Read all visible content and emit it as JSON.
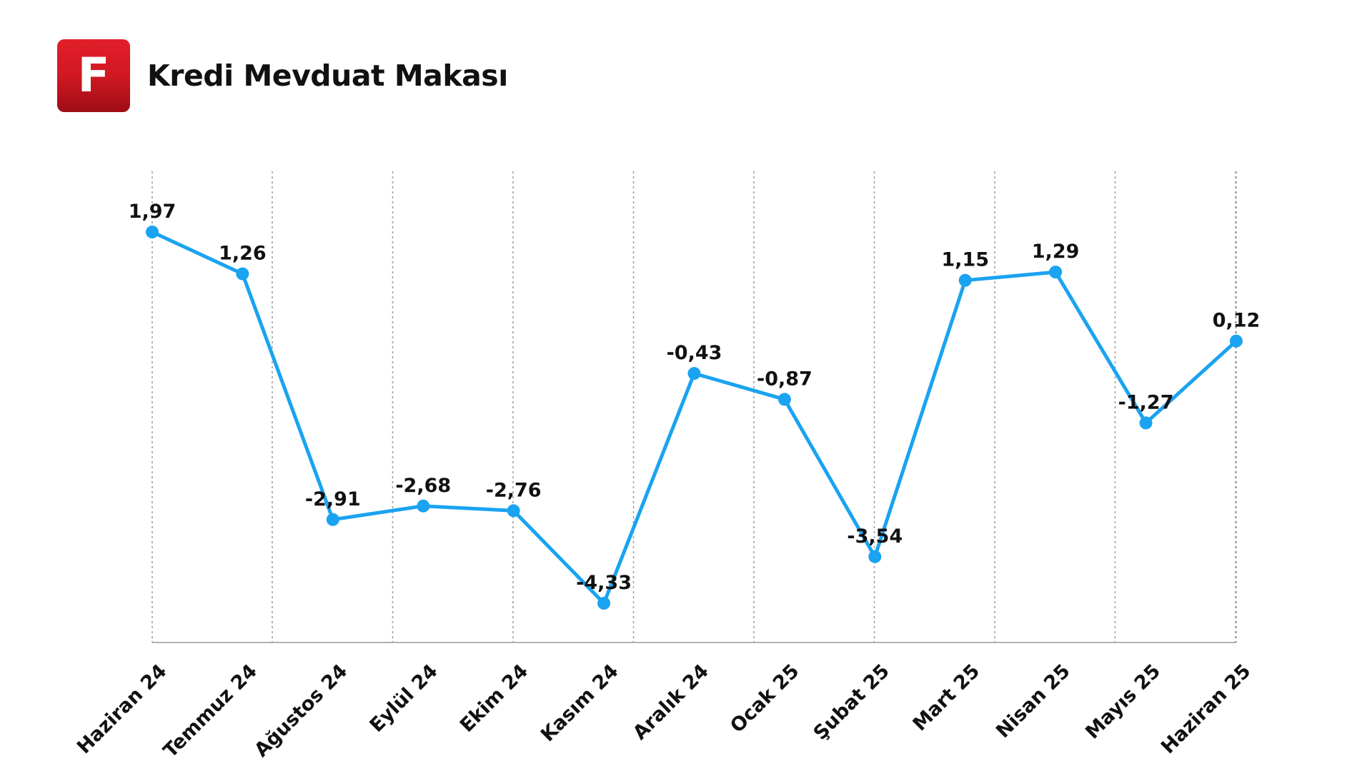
{
  "header": {
    "logo_letter": "F",
    "title": "Kredi Mevduat Makası"
  },
  "chart_data": {
    "type": "line",
    "title": "Kredi Mevduat Makası",
    "xlabel": "",
    "ylabel": "",
    "categories": [
      "Haziran 24",
      "Temmuz 24",
      "Ağustos 24",
      "Eylül 24",
      "Ekim 24",
      "Kasım 24",
      "Aralık 24",
      "Ocak 25",
      "Şubat 25",
      "Mart 25",
      "Nisan 25",
      "Mayıs 25",
      "Haziran 25"
    ],
    "series": [
      {
        "values": [
          1.97,
          1.26,
          -2.91,
          -2.68,
          -2.76,
          -4.33,
          -0.43,
          -0.87,
          -3.54,
          1.15,
          1.29,
          -1.27,
          0.12
        ],
        "labels": [
          "1,97",
          "1,26",
          "-2,91",
          "-2,68",
          "-2,76",
          "-4,33",
          "-0,43",
          "-0,87",
          "-3,54",
          "1,15",
          "1,29",
          "-1,27",
          "0,12"
        ],
        "color": "#1aa3f0"
      }
    ],
    "ylim": [
      -5,
      2.5
    ],
    "grid": "vertical-dashed",
    "legend": "none",
    "colors": {
      "line": "#1aa3f0",
      "grid": "#999999",
      "axis": "#999999",
      "text": "#111111"
    }
  }
}
